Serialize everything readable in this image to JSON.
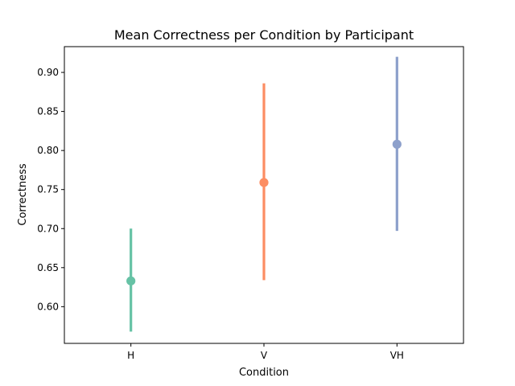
{
  "chart_data": {
    "type": "scatter",
    "title": "Mean Correctness per Condition by Participant",
    "xlabel": "Condition",
    "ylabel": "Correctness",
    "categories": [
      "H",
      "V",
      "VH"
    ],
    "points": [
      {
        "category": "H",
        "mean": 0.633,
        "lower": 0.568,
        "upper": 0.7,
        "color": "#66c2a5"
      },
      {
        "category": "V",
        "mean": 0.759,
        "lower": 0.634,
        "upper": 0.886,
        "color": "#fc8d62"
      },
      {
        "category": "VH",
        "mean": 0.808,
        "lower": 0.697,
        "upper": 0.92,
        "color": "#8da0cb"
      }
    ],
    "ylim": [
      0.553,
      0.933
    ],
    "yticks": [
      "0.60",
      "0.65",
      "0.70",
      "0.75",
      "0.80",
      "0.85",
      "0.90"
    ],
    "grid": false,
    "legend": "none"
  }
}
